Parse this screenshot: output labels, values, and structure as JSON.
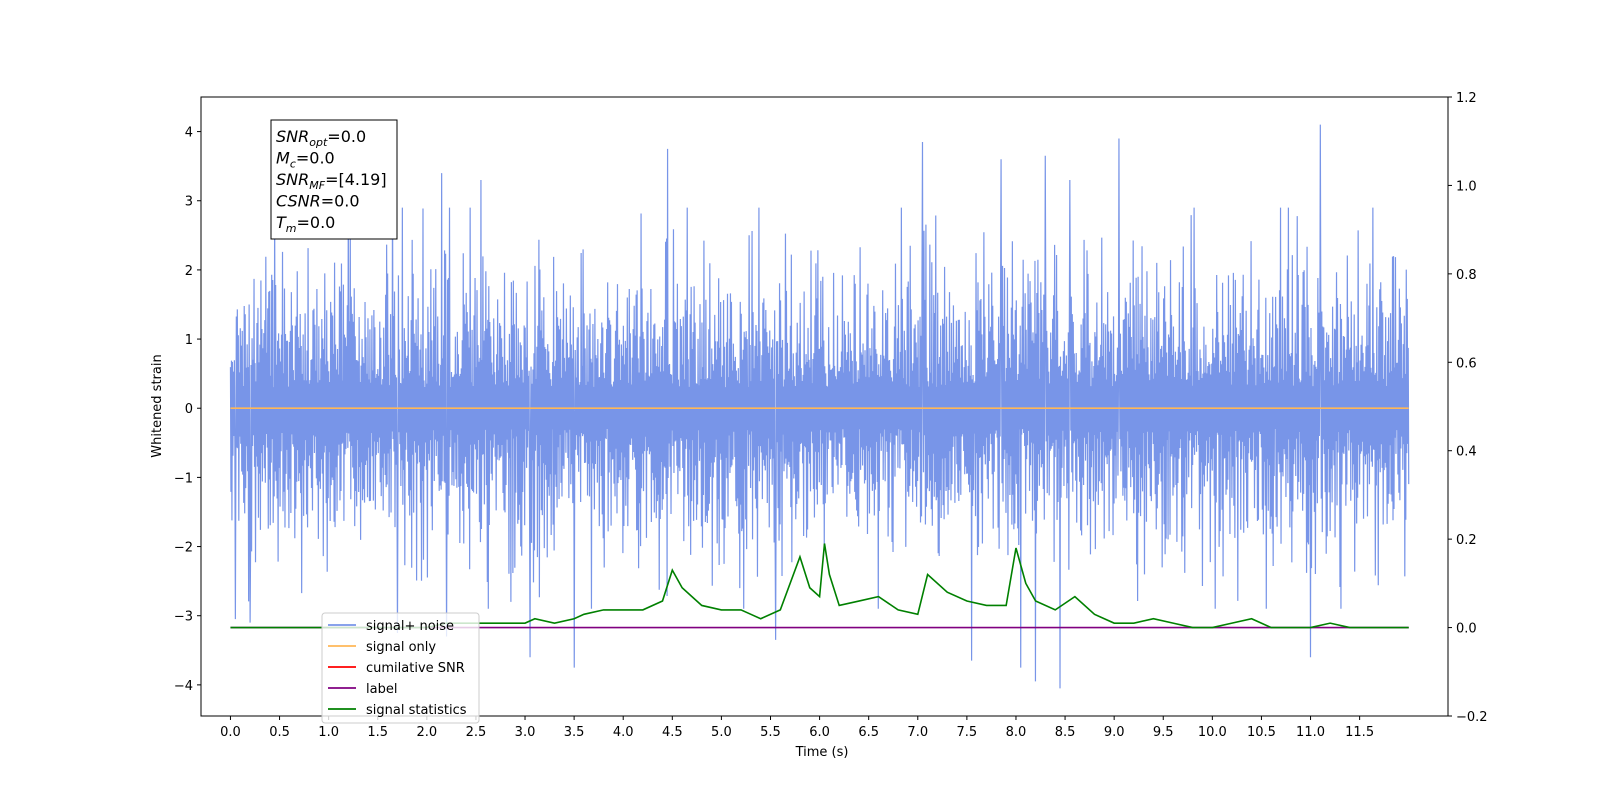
{
  "chart_data": {
    "type": "line",
    "xlabel": "Time (s)",
    "ylabel": "Whitened strain",
    "xlim": [
      -0.3,
      12.4
    ],
    "ylim": [
      -4.45,
      4.5
    ],
    "y2lim": [
      -0.2,
      1.2
    ],
    "grid": false,
    "legend_placement": "lower-left",
    "x_ticks": [
      "0.0",
      "0.5",
      "1.0",
      "1.5",
      "2.0",
      "2.5",
      "3.0",
      "3.5",
      "4.0",
      "4.5",
      "5.0",
      "5.5",
      "6.0",
      "6.5",
      "7.0",
      "7.5",
      "8.0",
      "8.5",
      "9.0",
      "9.5",
      "10.0",
      "10.5",
      "11.0",
      "11.5"
    ],
    "y_ticks": [
      "4",
      "3",
      "2",
      "1",
      "0",
      "−1",
      "−2",
      "−3",
      "−4"
    ],
    "y2_ticks": [
      "1.2",
      "1.0",
      "0.8",
      "0.6",
      "0.4",
      "0.2",
      "0.0",
      "−0.2"
    ],
    "annotation": [
      {
        "main": "SNR",
        "sub": "opt",
        "rest": "=0.0"
      },
      {
        "main": "M",
        "sub": "c",
        "rest": "=0.0"
      },
      {
        "main": "SNR",
        "sub": "MF",
        "rest": "=[4.19]"
      },
      {
        "main": "CSNR",
        "sub": "",
        "rest": "=0.0"
      },
      {
        "main": "T",
        "sub": "m",
        "rest": "=0.0"
      }
    ],
    "series": [
      {
        "name": "signal+ noise",
        "color": "#7895e8",
        "axis": "left",
        "x_range": [
          0.0,
          12.0
        ],
        "noise_sigma": 0.95,
        "spikes_up": [
          [
            0.05,
            2.5
          ],
          [
            0.45,
            3.0
          ],
          [
            1.2,
            3.3
          ],
          [
            1.65,
            3.35
          ],
          [
            2.15,
            3.4
          ],
          [
            2.55,
            3.3
          ],
          [
            4.45,
            3.75
          ],
          [
            7.05,
            3.85
          ],
          [
            7.85,
            3.6
          ],
          [
            8.3,
            3.65
          ],
          [
            8.55,
            3.3
          ],
          [
            9.05,
            3.9
          ],
          [
            11.1,
            4.1
          ]
        ],
        "spikes_down": [
          [
            0.05,
            -3.05
          ],
          [
            0.2,
            -3.1
          ],
          [
            1.7,
            -3.25
          ],
          [
            2.2,
            -3.3
          ],
          [
            3.05,
            -3.6
          ],
          [
            3.5,
            -3.75
          ],
          [
            5.55,
            -3.35
          ],
          [
            7.55,
            -3.65
          ],
          [
            8.05,
            -3.75
          ],
          [
            8.2,
            -3.95
          ],
          [
            8.45,
            -4.05
          ],
          [
            11.0,
            -3.6
          ]
        ]
      },
      {
        "name": "signal only",
        "color": "#ffb757",
        "axis": "left",
        "x": [
          0.0,
          12.0
        ],
        "y": [
          0.0,
          0.0
        ]
      },
      {
        "name": "cumilative SNR",
        "color": "#ff0000",
        "axis": "right",
        "x": [],
        "y": []
      },
      {
        "name": "label",
        "color": "#800080",
        "axis": "right",
        "x": [
          0.0,
          12.0
        ],
        "y": [
          0.0,
          0.0
        ]
      },
      {
        "name": "signal statistics",
        "color": "#008000",
        "axis": "right",
        "x": [
          0.0,
          0.5,
          1.0,
          1.5,
          2.0,
          2.2,
          2.5,
          2.8,
          3.0,
          3.1,
          3.3,
          3.5,
          3.6,
          3.8,
          4.0,
          4.2,
          4.4,
          4.5,
          4.6,
          4.7,
          4.8,
          5.0,
          5.2,
          5.3,
          5.4,
          5.6,
          5.8,
          5.9,
          6.0,
          6.05,
          6.1,
          6.2,
          6.4,
          6.6,
          6.8,
          7.0,
          7.1,
          7.3,
          7.5,
          7.7,
          7.9,
          8.0,
          8.1,
          8.2,
          8.4,
          8.6,
          8.8,
          9.0,
          9.2,
          9.4,
          9.6,
          9.8,
          10.0,
          10.2,
          10.4,
          10.6,
          10.8,
          11.0,
          11.2,
          11.4,
          11.6,
          11.8,
          12.0
        ],
        "y": [
          0.0,
          0.0,
          0.0,
          0.0,
          0.0,
          0.01,
          0.01,
          0.01,
          0.01,
          0.02,
          0.01,
          0.02,
          0.03,
          0.04,
          0.04,
          0.04,
          0.06,
          0.13,
          0.09,
          0.07,
          0.05,
          0.04,
          0.04,
          0.03,
          0.02,
          0.04,
          0.16,
          0.09,
          0.07,
          0.19,
          0.12,
          0.05,
          0.06,
          0.07,
          0.04,
          0.03,
          0.12,
          0.08,
          0.06,
          0.05,
          0.05,
          0.18,
          0.1,
          0.06,
          0.04,
          0.07,
          0.03,
          0.01,
          0.01,
          0.02,
          0.01,
          0.0,
          0.0,
          0.01,
          0.02,
          0.0,
          0.0,
          0.0,
          0.01,
          0.0,
          0.0,
          0.0,
          0.0
        ]
      }
    ]
  }
}
